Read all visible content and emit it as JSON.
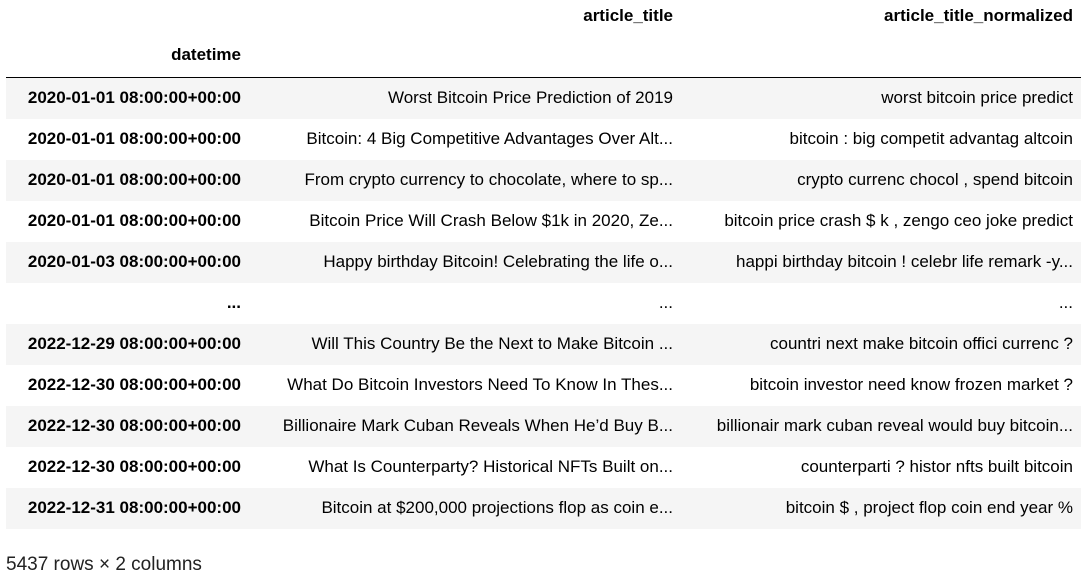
{
  "columns": {
    "col1": "article_title",
    "col2": "article_title_normalized"
  },
  "index_name": "datetime",
  "rows": [
    {
      "index": "2020-01-01 08:00:00+00:00",
      "title": "Worst Bitcoin Price Prediction of 2019",
      "normalized": "worst bitcoin price predict"
    },
    {
      "index": "2020-01-01 08:00:00+00:00",
      "title": "Bitcoin: 4 Big Competitive Advantages Over Alt...",
      "normalized": "bitcoin : big competit advantag altcoin"
    },
    {
      "index": "2020-01-01 08:00:00+00:00",
      "title": "From crypto currency to chocolate, where to sp...",
      "normalized": "crypto currenc chocol , spend bitcoin"
    },
    {
      "index": "2020-01-01 08:00:00+00:00",
      "title": "Bitcoin Price Will Crash Below $1k in 2020, Ze...",
      "normalized": "bitcoin price crash $ k , zengo ceo joke predict"
    },
    {
      "index": "2020-01-03 08:00:00+00:00",
      "title": "Happy birthday Bitcoin! Celebrating the life o...",
      "normalized": "happi birthday bitcoin ! celebr life remark -y..."
    },
    {
      "index": "...",
      "title": "...",
      "normalized": "..."
    },
    {
      "index": "2022-12-29 08:00:00+00:00",
      "title": "Will This Country Be the Next to Make Bitcoin ...",
      "normalized": "countri next make bitcoin offici currenc ?"
    },
    {
      "index": "2022-12-30 08:00:00+00:00",
      "title": "What Do Bitcoin Investors Need To Know In Thes...",
      "normalized": "bitcoin investor need know frozen market ?"
    },
    {
      "index": "2022-12-30 08:00:00+00:00",
      "title": "Billionaire Mark Cuban Reveals When He’d Buy B...",
      "normalized": "billionair mark cuban reveal would buy bitcoin..."
    },
    {
      "index": "2022-12-30 08:00:00+00:00",
      "title": "What Is Counterparty? Historical NFTs Built on...",
      "normalized": "counterparti ? histor nfts built bitcoin"
    },
    {
      "index": "2022-12-31 08:00:00+00:00",
      "title": "Bitcoin at $200,000 projections flop as coin e...",
      "normalized": "bitcoin $ , project flop coin end year %"
    }
  ],
  "shape_text": "5437 rows × 2 columns"
}
